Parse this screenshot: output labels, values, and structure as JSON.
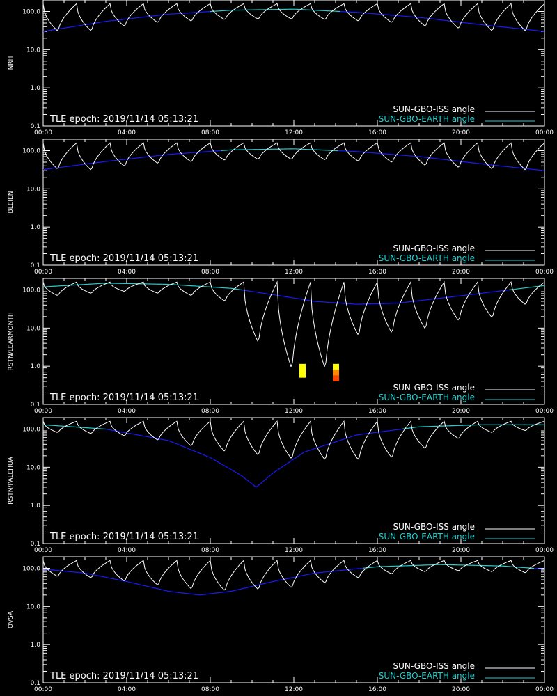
{
  "chart_data": [
    {
      "type": "line",
      "ylabel": "NRH",
      "tle_epoch": "TLE epoch: 2019/11/14 05:13:21",
      "x_ticks": [
        "00:00",
        "04:00",
        "08:00",
        "12:00",
        "16:00",
        "20:00",
        "00:00"
      ],
      "y_ticks": [
        "100.0",
        "10.0",
        "1.0",
        "0.1"
      ],
      "ylim": [
        0.1,
        200
      ],
      "log_y": true,
      "legend_position": "bottom-right",
      "series": [
        {
          "name": "SUN-GBO-ISS angle",
          "color": "#ffffff",
          "kind": "orbit",
          "min_values": [
            30,
            30,
            40,
            50,
            55,
            60,
            62,
            62,
            60,
            55,
            50,
            40,
            35,
            30,
            30
          ],
          "peak": 160
        },
        {
          "name": "SUN-GBO-EARTH angle",
          "color_high": "#22d0d0",
          "color_low": "#1a1aff",
          "x": [
            0,
            3,
            6,
            9,
            12,
            15,
            18,
            21,
            24
          ],
          "values": [
            30,
            55,
            85,
            108,
            115,
            95,
            70,
            45,
            30
          ]
        }
      ],
      "markers": []
    },
    {
      "type": "line",
      "ylabel": "BLEIEN",
      "tle_epoch": "TLE epoch: 2019/11/14 05:13:21",
      "x_ticks": [
        "00:00",
        "04:00",
        "08:00",
        "12:00",
        "16:00",
        "20:00",
        "00:00"
      ],
      "y_ticks": [
        "100.0",
        "10.0",
        "1.0",
        "0.1"
      ],
      "ylim": [
        0.1,
        200
      ],
      "log_y": true,
      "legend_position": "bottom-right",
      "series": [
        {
          "name": "SUN-GBO-ISS angle",
          "color": "#ffffff",
          "kind": "orbit",
          "min_values": [
            32,
            30,
            38,
            45,
            50,
            55,
            58,
            58,
            56,
            52,
            48,
            40,
            35,
            32,
            30
          ],
          "peak": 160
        },
        {
          "name": "SUN-GBO-EARTH angle",
          "color_high": "#22d0d0",
          "color_low": "#1a1aff",
          "x": [
            0,
            3,
            6,
            9,
            12,
            15,
            18,
            21,
            24
          ],
          "values": [
            32,
            52,
            80,
            105,
            112,
            95,
            70,
            45,
            30
          ]
        }
      ],
      "markers": []
    },
    {
      "type": "line",
      "ylabel": "RSTN/LEARMONTH",
      "tle_epoch": "TLE epoch: 2019/11/14 05:13:21",
      "x_ticks": [
        "00:00",
        "04:00",
        "08:00",
        "12:00",
        "16:00",
        "20:00",
        "00:00"
      ],
      "y_ticks": [
        "100.0",
        "10.0",
        "1.0",
        "0.1"
      ],
      "ylim": [
        0.1,
        200
      ],
      "log_y": true,
      "legend_position": "bottom-right",
      "series": [
        {
          "name": "SUN-GBO-ISS angle",
          "color": "#ffffff",
          "kind": "orbit",
          "min_values": [
            70,
            80,
            90,
            80,
            70,
            50,
            4,
            0.8,
            0.8,
            6,
            7,
            9,
            15,
            18,
            40
          ],
          "peak": 160
        },
        {
          "name": "SUN-GBO-EARTH angle",
          "color_high": "#22d0d0",
          "color_low": "#1a1aff",
          "x": [
            0,
            3,
            6,
            9,
            11,
            13,
            15,
            17,
            20,
            24
          ],
          "values": [
            120,
            150,
            140,
            110,
            75,
            50,
            42,
            45,
            70,
            130
          ]
        }
      ],
      "markers": [
        {
          "x_hours": 12.4,
          "y_top": 1.15,
          "y_bottom": 0.5,
          "colors": [
            "#ffff00"
          ]
        },
        {
          "x_hours": 14.0,
          "y_top": 1.15,
          "y_bottom": 0.4,
          "colors": [
            "#ffff00",
            "#ff8800",
            "#ff4400"
          ]
        }
      ]
    },
    {
      "type": "line",
      "ylabel": "RSTN/PALEHUA",
      "tle_epoch": "TLE epoch: 2019/11/14 05:13:21",
      "x_ticks": [
        "00:00",
        "04:00",
        "08:00",
        "12:00",
        "16:00",
        "20:00",
        "00:00"
      ],
      "y_ticks": [
        "100.0",
        "10.0",
        "1.0",
        "0.1"
      ],
      "ylim": [
        0.1,
        200
      ],
      "log_y": true,
      "legend_position": "bottom-right",
      "series": [
        {
          "name": "SUN-GBO-ISS angle",
          "color": "#ffffff",
          "kind": "orbit",
          "min_values": [
            80,
            75,
            65,
            50,
            35,
            25,
            20,
            16,
            15,
            15,
            17,
            30,
            55,
            80,
            90
          ],
          "peak": 160
        },
        {
          "name": "SUN-GBO-EARTH angle",
          "color_high": "#22d0d0",
          "color_low": "#1a1aff",
          "x": [
            0,
            3,
            6,
            8,
            9.5,
            10.2,
            11,
            12.5,
            15,
            18,
            21,
            24
          ],
          "values": [
            130,
            100,
            50,
            18,
            6,
            3,
            7,
            25,
            70,
            115,
            130,
            130
          ]
        }
      ],
      "markers": []
    },
    {
      "type": "line",
      "ylabel": "OVSA",
      "tle_epoch": "TLE epoch: 2019/11/14 05:13:21",
      "x_ticks": [
        "00:00",
        "04:00",
        "08:00",
        "12:00",
        "16:00",
        "20:00",
        "00:00"
      ],
      "y_ticks": [
        "100.0",
        "10.0",
        "1.0",
        "0.1"
      ],
      "ylim": [
        0.1,
        200
      ],
      "log_y": true,
      "legend_position": "bottom-right",
      "series": [
        {
          "name": "SUN-GBO-ISS angle",
          "color": "#ffffff",
          "kind": "orbit",
          "min_values": [
            60,
            55,
            45,
            35,
            28,
            25,
            27,
            30,
            40,
            55,
            70,
            80,
            85,
            80,
            75
          ],
          "peak": 160
        },
        {
          "name": "SUN-GBO-EARTH angle",
          "color_high": "#22d0d0",
          "color_low": "#1a1aff",
          "x": [
            0,
            2,
            4,
            6,
            7.5,
            9,
            11,
            13,
            16,
            19,
            22,
            24
          ],
          "values": [
            95,
            75,
            45,
            25,
            20,
            25,
            45,
            75,
            110,
            125,
            115,
            95
          ]
        }
      ],
      "markers": []
    }
  ]
}
